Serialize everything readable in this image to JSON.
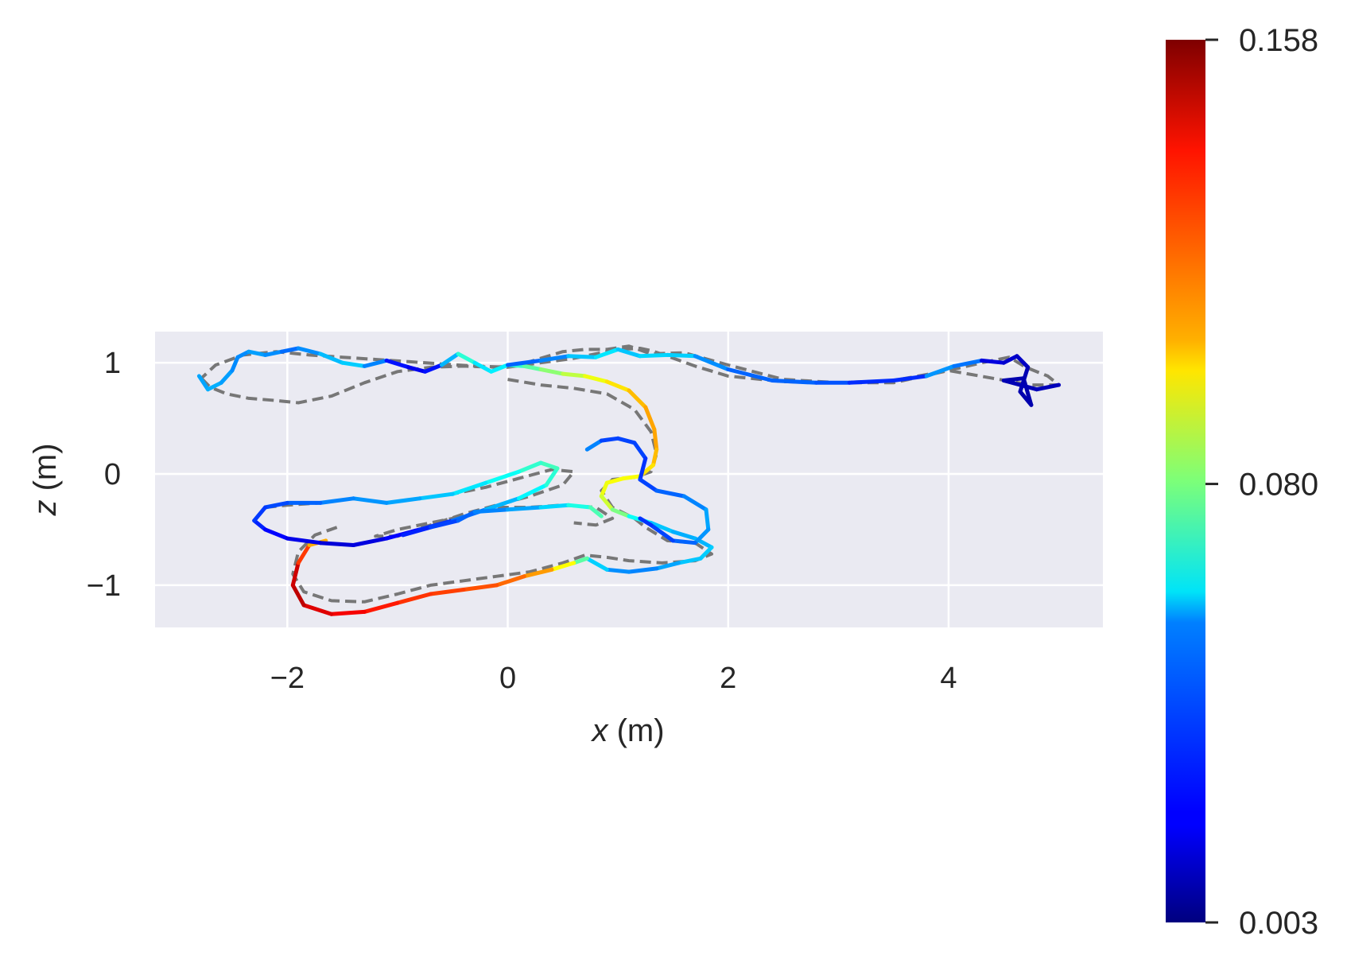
{
  "chart_data": {
    "type": "line",
    "xlabel_var": "x",
    "xlabel_unit": " (m)",
    "ylabel_var": "z",
    "ylabel_unit": " (m)",
    "xlim": [
      -3.2,
      5.4
    ],
    "ylim": [
      -1.38,
      1.28
    ],
    "x_ticks": [
      -2,
      0,
      2,
      4
    ],
    "x_tick_labels": [
      "−2",
      "0",
      "2",
      "4"
    ],
    "y_ticks": [
      -1,
      0,
      1
    ],
    "y_tick_labels": [
      "−1",
      "0",
      "1"
    ],
    "grid": true,
    "plot_background": "#eaeaf2",
    "colormap": "jet",
    "colorbar": {
      "min": 0.003,
      "max": 0.158,
      "tick_values": [
        0.003,
        0.08,
        0.158
      ],
      "tick_labels": [
        "0.003",
        "0.080",
        "0.158"
      ]
    },
    "series": [
      {
        "style": "dashed",
        "color": "#777777",
        "x": [
          -2.78,
          -2.7,
          -2.55,
          -2.35,
          -2.1,
          -1.9,
          -1.6,
          -1.3,
          -1.0,
          -0.7,
          -0.4,
          -0.1,
          0.1,
          0.3,
          0.5,
          0.7,
          0.9,
          1.1,
          1.3,
          1.6,
          2.0,
          2.5,
          3.0,
          3.5,
          4.0,
          4.3,
          4.55,
          4.7,
          4.9,
          5.0,
          4.75,
          4.4,
          4.0,
          3.5,
          3.0,
          2.5,
          2.0,
          1.7,
          1.45,
          1.3,
          1.2,
          1.0,
          0.8,
          0.6,
          0.3,
          0.0,
          -0.3,
          -0.6,
          -0.9,
          -1.2,
          -1.5,
          -1.8,
          -2.1,
          -2.4,
          -2.65,
          -2.78
        ],
        "y": [
          0.86,
          0.78,
          0.72,
          0.68,
          0.66,
          0.64,
          0.7,
          0.82,
          0.92,
          0.96,
          0.97,
          0.96,
          0.98,
          1.04,
          1.1,
          1.12,
          1.12,
          1.15,
          1.08,
          1.09,
          0.98,
          0.85,
          0.82,
          0.82,
          0.93,
          1.0,
          1.05,
          0.96,
          0.88,
          0.8,
          0.8,
          0.86,
          0.93,
          0.84,
          0.82,
          0.83,
          0.88,
          0.97,
          1.06,
          1.11,
          1.13,
          1.12,
          1.08,
          1.04,
          1.0,
          0.96,
          0.97,
          0.99,
          1.01,
          1.03,
          1.05,
          1.07,
          1.1,
          1.07,
          0.98,
          0.86
        ]
      },
      {
        "style": "dashed",
        "color": "#777777",
        "x": [
          0.0,
          0.3,
          0.6,
          0.9,
          1.15,
          1.3,
          1.35,
          1.3,
          1.15,
          0.95,
          0.85,
          0.95,
          1.15,
          1.25,
          1.45,
          1.7,
          1.85,
          1.7,
          1.4,
          1.1,
          0.9,
          0.7,
          0.5,
          0.2,
          -0.1,
          -0.4,
          -0.7,
          -1.0,
          -1.3,
          -1.6,
          -1.85,
          -1.95,
          -1.9,
          -1.75,
          -1.55
        ],
        "y": [
          0.85,
          0.8,
          0.77,
          0.72,
          0.58,
          0.38,
          0.18,
          0.02,
          -0.03,
          -0.05,
          -0.15,
          -0.3,
          -0.4,
          -0.48,
          -0.6,
          -0.62,
          -0.72,
          -0.78,
          -0.8,
          -0.78,
          -0.75,
          -0.73,
          -0.8,
          -0.88,
          -0.92,
          -0.96,
          -1.0,
          -1.08,
          -1.15,
          -1.14,
          -1.06,
          -0.9,
          -0.7,
          -0.55,
          -0.48
        ]
      },
      {
        "style": "dashed",
        "color": "#777777",
        "x": [
          -2.2,
          -2.0,
          -1.7,
          -1.4,
          -1.1,
          -0.8,
          -0.5,
          -0.2,
          0.1,
          0.4,
          0.6,
          0.5,
          0.2,
          -0.1,
          -0.4,
          -0.7,
          -1.0,
          -1.2,
          -1.0,
          -0.7,
          -0.4,
          -0.1,
          0.2,
          0.5,
          0.8,
          0.95,
          0.8,
          0.6
        ],
        "y": [
          -0.3,
          -0.28,
          -0.26,
          -0.22,
          -0.26,
          -0.22,
          -0.18,
          -0.12,
          -0.04,
          0.04,
          0.02,
          -0.1,
          -0.2,
          -0.28,
          -0.36,
          -0.46,
          -0.56,
          -0.56,
          -0.5,
          -0.44,
          -0.38,
          -0.3,
          -0.3,
          -0.28,
          -0.3,
          -0.4,
          -0.46,
          -0.44
        ]
      },
      {
        "style": "colored",
        "points": [
          {
            "x": -2.8,
            "y": 0.88,
            "err": 0.045
          },
          {
            "x": -2.72,
            "y": 0.76,
            "err": 0.05
          },
          {
            "x": -2.6,
            "y": 0.82,
            "err": 0.048
          },
          {
            "x": -2.5,
            "y": 0.93,
            "err": 0.045
          },
          {
            "x": -2.45,
            "y": 1.05,
            "err": 0.042
          },
          {
            "x": -2.35,
            "y": 1.1,
            "err": 0.045
          },
          {
            "x": -2.2,
            "y": 1.07,
            "err": 0.048
          },
          {
            "x": -2.05,
            "y": 1.1,
            "err": 0.04
          },
          {
            "x": -1.9,
            "y": 1.13,
            "err": 0.038
          },
          {
            "x": -1.7,
            "y": 1.08,
            "err": 0.05
          },
          {
            "x": -1.5,
            "y": 1.0,
            "err": 0.052
          },
          {
            "x": -1.3,
            "y": 0.97,
            "err": 0.055
          },
          {
            "x": -1.1,
            "y": 1.02,
            "err": 0.03
          },
          {
            "x": -0.9,
            "y": 0.96,
            "err": 0.02
          },
          {
            "x": -0.75,
            "y": 0.92,
            "err": 0.02
          },
          {
            "x": -0.6,
            "y": 0.98,
            "err": 0.03
          },
          {
            "x": -0.45,
            "y": 1.08,
            "err": 0.07
          },
          {
            "x": -0.3,
            "y": 1.0,
            "err": 0.065
          },
          {
            "x": -0.15,
            "y": 0.92,
            "err": 0.05
          },
          {
            "x": 0.0,
            "y": 0.98,
            "err": 0.068
          },
          {
            "x": 0.15,
            "y": 0.97,
            "err": 0.07
          },
          {
            "x": 0.3,
            "y": 0.94,
            "err": 0.08
          },
          {
            "x": 0.5,
            "y": 0.9,
            "err": 0.085
          },
          {
            "x": 0.7,
            "y": 0.88,
            "err": 0.095
          },
          {
            "x": 0.9,
            "y": 0.83,
            "err": 0.1
          },
          {
            "x": 1.1,
            "y": 0.75,
            "err": 0.108
          },
          {
            "x": 1.25,
            "y": 0.6,
            "err": 0.112
          },
          {
            "x": 1.33,
            "y": 0.4,
            "err": 0.115
          },
          {
            "x": 1.35,
            "y": 0.22,
            "err": 0.112
          },
          {
            "x": 1.32,
            "y": 0.08,
            "err": 0.108
          },
          {
            "x": 1.2,
            "y": -0.02,
            "err": 0.1
          },
          {
            "x": 1.05,
            "y": -0.04,
            "err": 0.098
          },
          {
            "x": 0.9,
            "y": -0.08,
            "err": 0.1
          },
          {
            "x": 0.85,
            "y": -0.2,
            "err": 0.095
          },
          {
            "x": 0.95,
            "y": -0.32,
            "err": 0.09
          },
          {
            "x": 1.1,
            "y": -0.38,
            "err": 0.07
          },
          {
            "x": 1.3,
            "y": -0.44,
            "err": 0.055
          },
          {
            "x": 1.5,
            "y": -0.52,
            "err": 0.05
          },
          {
            "x": 1.7,
            "y": -0.58,
            "err": 0.048
          },
          {
            "x": 1.85,
            "y": -0.66,
            "err": 0.052
          },
          {
            "x": 1.75,
            "y": -0.76,
            "err": 0.055
          },
          {
            "x": 1.55,
            "y": -0.8,
            "err": 0.05
          },
          {
            "x": 1.35,
            "y": -0.85,
            "err": 0.045
          },
          {
            "x": 1.1,
            "y": -0.88,
            "err": 0.04
          },
          {
            "x": 0.9,
            "y": -0.86,
            "err": 0.048
          },
          {
            "x": 0.72,
            "y": -0.76,
            "err": 0.06
          },
          {
            "x": 0.6,
            "y": -0.8,
            "err": 0.09
          },
          {
            "x": 0.4,
            "y": -0.86,
            "err": 0.11
          },
          {
            "x": 0.15,
            "y": -0.92,
            "err": 0.12
          },
          {
            "x": -0.1,
            "y": -1.0,
            "err": 0.125
          },
          {
            "x": -0.4,
            "y": -1.04,
            "err": 0.128
          },
          {
            "x": -0.7,
            "y": -1.08,
            "err": 0.13
          },
          {
            "x": -1.0,
            "y": -1.16,
            "err": 0.132
          },
          {
            "x": -1.3,
            "y": -1.24,
            "err": 0.138
          },
          {
            "x": -1.6,
            "y": -1.26,
            "err": 0.142
          },
          {
            "x": -1.85,
            "y": -1.18,
            "err": 0.145
          },
          {
            "x": -1.95,
            "y": -1.0,
            "err": 0.152
          },
          {
            "x": -1.9,
            "y": -0.8,
            "err": 0.14
          },
          {
            "x": -1.8,
            "y": -0.64,
            "err": 0.12
          },
          {
            "x": -1.65,
            "y": -0.6,
            "err": 0.105
          }
        ]
      },
      {
        "style": "colored",
        "points": [
          {
            "x": 0.0,
            "y": 0.98,
            "err": 0.035
          },
          {
            "x": 0.3,
            "y": 1.02,
            "err": 0.04
          },
          {
            "x": 0.55,
            "y": 1.06,
            "err": 0.045
          },
          {
            "x": 0.8,
            "y": 1.05,
            "err": 0.06
          },
          {
            "x": 1.0,
            "y": 1.12,
            "err": 0.055
          },
          {
            "x": 1.2,
            "y": 1.06,
            "err": 0.05
          },
          {
            "x": 1.45,
            "y": 1.07,
            "err": 0.06
          },
          {
            "x": 1.7,
            "y": 1.06,
            "err": 0.048
          },
          {
            "x": 2.0,
            "y": 0.94,
            "err": 0.04
          },
          {
            "x": 2.4,
            "y": 0.84,
            "err": 0.035
          },
          {
            "x": 2.8,
            "y": 0.82,
            "err": 0.04
          },
          {
            "x": 3.1,
            "y": 0.82,
            "err": 0.03
          },
          {
            "x": 3.5,
            "y": 0.84,
            "err": 0.028
          },
          {
            "x": 3.8,
            "y": 0.88,
            "err": 0.03
          },
          {
            "x": 4.05,
            "y": 0.97,
            "err": 0.06
          },
          {
            "x": 4.3,
            "y": 1.02,
            "err": 0.02
          },
          {
            "x": 4.5,
            "y": 1.0,
            "err": 0.015
          },
          {
            "x": 4.62,
            "y": 1.06,
            "err": 0.015
          },
          {
            "x": 4.72,
            "y": 0.96,
            "err": 0.012
          },
          {
            "x": 4.65,
            "y": 0.74,
            "err": 0.01
          },
          {
            "x": 4.75,
            "y": 0.62,
            "err": 0.01
          },
          {
            "x": 4.68,
            "y": 0.86,
            "err": 0.01
          },
          {
            "x": 4.5,
            "y": 0.84,
            "err": 0.01
          },
          {
            "x": 4.8,
            "y": 0.76,
            "err": 0.012
          },
          {
            "x": 5.0,
            "y": 0.8,
            "err": 0.012
          }
        ]
      },
      {
        "style": "colored",
        "points": [
          {
            "x": -2.3,
            "y": -0.42,
            "err": 0.03
          },
          {
            "x": -2.2,
            "y": -0.5,
            "err": 0.025
          },
          {
            "x": -2.0,
            "y": -0.58,
            "err": 0.02
          },
          {
            "x": -1.7,
            "y": -0.62,
            "err": 0.018
          },
          {
            "x": -1.4,
            "y": -0.64,
            "err": 0.015
          },
          {
            "x": -1.1,
            "y": -0.58,
            "err": 0.02
          },
          {
            "x": -0.8,
            "y": -0.5,
            "err": 0.025
          },
          {
            "x": -0.5,
            "y": -0.42,
            "err": 0.035
          },
          {
            "x": -0.2,
            "y": -0.32,
            "err": 0.045
          },
          {
            "x": 0.1,
            "y": -0.22,
            "err": 0.055
          },
          {
            "x": 0.35,
            "y": -0.1,
            "err": 0.065
          },
          {
            "x": 0.45,
            "y": 0.05,
            "err": 0.07
          },
          {
            "x": 0.3,
            "y": 0.1,
            "err": 0.072
          },
          {
            "x": 0.1,
            "y": 0.02,
            "err": 0.065
          },
          {
            "x": -0.2,
            "y": -0.08,
            "err": 0.06
          },
          {
            "x": -0.5,
            "y": -0.18,
            "err": 0.055
          },
          {
            "x": -0.8,
            "y": -0.22,
            "err": 0.05
          },
          {
            "x": -1.1,
            "y": -0.26,
            "err": 0.045
          },
          {
            "x": -1.4,
            "y": -0.22,
            "err": 0.045
          },
          {
            "x": -1.7,
            "y": -0.26,
            "err": 0.04
          },
          {
            "x": -2.0,
            "y": -0.26,
            "err": 0.035
          },
          {
            "x": -2.2,
            "y": -0.3,
            "err": 0.032
          },
          {
            "x": -2.3,
            "y": -0.42,
            "err": 0.03
          }
        ]
      },
      {
        "style": "colored",
        "points": [
          {
            "x": 0.72,
            "y": 0.22,
            "err": 0.05
          },
          {
            "x": 0.85,
            "y": 0.3,
            "err": 0.035
          },
          {
            "x": 1.0,
            "y": 0.32,
            "err": 0.03
          },
          {
            "x": 1.15,
            "y": 0.28,
            "err": 0.035
          },
          {
            "x": 1.25,
            "y": 0.14,
            "err": 0.03
          },
          {
            "x": 1.2,
            "y": -0.05,
            "err": 0.03
          },
          {
            "x": 1.35,
            "y": -0.15,
            "err": 0.035
          },
          {
            "x": 1.6,
            "y": -0.2,
            "err": 0.04
          },
          {
            "x": 1.8,
            "y": -0.32,
            "err": 0.045
          },
          {
            "x": 1.82,
            "y": -0.5,
            "err": 0.05
          },
          {
            "x": 1.7,
            "y": -0.62,
            "err": 0.04
          },
          {
            "x": 1.5,
            "y": -0.6,
            "err": 0.035
          },
          {
            "x": 1.3,
            "y": -0.46,
            "err": 0.03
          },
          {
            "x": 1.2,
            "y": -0.4,
            "err": 0.03
          }
        ]
      },
      {
        "style": "colored",
        "points": [
          {
            "x": -0.95,
            "y": -0.55,
            "err": 0.025
          },
          {
            "x": -0.7,
            "y": -0.48,
            "err": 0.03
          },
          {
            "x": -0.45,
            "y": -0.42,
            "err": 0.035
          },
          {
            "x": -0.3,
            "y": -0.34,
            "err": 0.04
          },
          {
            "x": 0.0,
            "y": -0.32,
            "err": 0.045
          },
          {
            "x": 0.3,
            "y": -0.3,
            "err": 0.05
          },
          {
            "x": 0.55,
            "y": -0.28,
            "err": 0.06
          },
          {
            "x": 0.75,
            "y": -0.3,
            "err": 0.07
          },
          {
            "x": 0.85,
            "y": -0.38,
            "err": 0.075
          }
        ]
      }
    ]
  }
}
